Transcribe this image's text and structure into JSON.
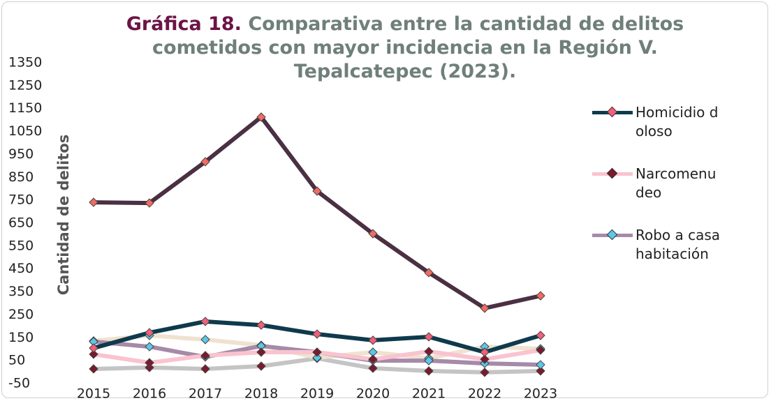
{
  "chart_data": {
    "type": "line",
    "title_prefix": "Gráfica 18.",
    "title": "Comparativa entre la cantidad de delitos cometidos con mayor incidencia en la Región V. Tepalcatepec (2023).",
    "y_label": "Cantidad de delitos",
    "categories": [
      "2015",
      "2016",
      "2017",
      "2018",
      "2019",
      "2020",
      "2021",
      "2022",
      "2023"
    ],
    "ylim": [
      -50,
      1350
    ],
    "yticks": [
      -50,
      50,
      150,
      250,
      350,
      450,
      550,
      650,
      750,
      850,
      950,
      1050,
      1150,
      1250,
      1350
    ],
    "grid": false,
    "legend": "right",
    "series": [
      {
        "color": "#c4c4c4",
        "marker_color": "#7a1a2e",
        "values": [
          14,
          20,
          14,
          26,
          60,
          17,
          5,
          -1,
          5
        ]
      },
      {
        "color": "#efe2cf",
        "marker_color": "#5bc8e8",
        "values": [
          136,
          160,
          142,
          117,
          63,
          87,
          60,
          111,
          102
        ]
      },
      {
        "name": "Robo a casa habitación",
        "color": "#a68aa8",
        "marker_color": "#5bc8e8",
        "values": [
          133,
          111,
          66,
          114,
          87,
          50,
          50,
          38,
          32
        ]
      },
      {
        "name": "Narcomenudeo",
        "color": "#f9c3cf",
        "marker_color": "#7a1a2e",
        "values": [
          78,
          41,
          72,
          87,
          87,
          56,
          90,
          56,
          96
        ]
      },
      {
        "name": "Homicidio doloso",
        "color": "#0e3a4c",
        "marker_color": "#f0607a",
        "values": [
          105,
          172,
          221,
          205,
          166,
          139,
          154,
          87,
          160
        ]
      },
      {
        "color": "#4a3042",
        "marker_color": "#f46a62",
        "values": [
          741,
          738,
          918,
          1113,
          790,
          604,
          434,
          279,
          333
        ]
      }
    ]
  }
}
